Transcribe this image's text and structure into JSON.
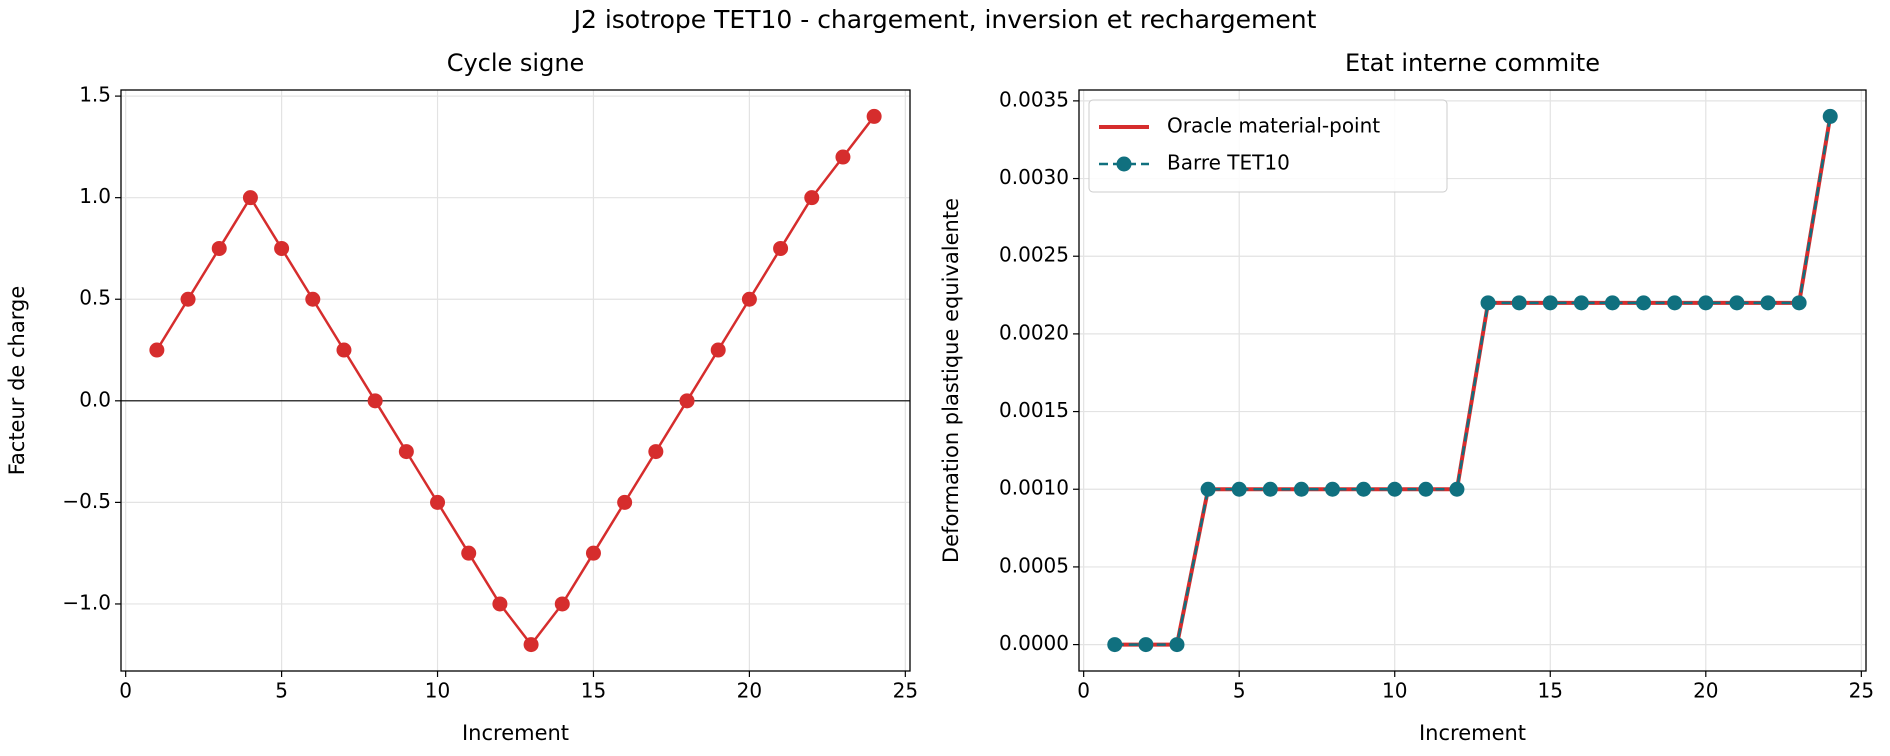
{
  "title": "J2 isotrope TET10 - chargement, inversion et rechargement",
  "chart_data": [
    {
      "type": "line",
      "title": "Cycle signe",
      "xlabel": "Increment",
      "ylabel": "Facteur de charge",
      "x": [
        1,
        2,
        3,
        4,
        5,
        6,
        7,
        8,
        9,
        10,
        11,
        12,
        13,
        14,
        15,
        16,
        17,
        18,
        19,
        20,
        21,
        22,
        23,
        24
      ],
      "series": [
        {
          "color": "#d62d2d",
          "linestyle": "solid",
          "linewidth": 2.5,
          "marker": true,
          "values": [
            0.25,
            0.5,
            0.75,
            1.0,
            0.75,
            0.5,
            0.25,
            0.0,
            -0.25,
            -0.5,
            -0.75,
            -1.0,
            -1.2,
            -1.0,
            -0.75,
            -0.5,
            -0.25,
            0.0,
            0.25,
            0.5,
            0.75,
            1.0,
            1.2,
            1.4
          ]
        }
      ],
      "hline": 0,
      "xlim": [
        -0.15,
        25.15
      ],
      "ylim": [
        -1.33,
        1.53
      ],
      "xticks": [
        0,
        5,
        10,
        15,
        20,
        25
      ],
      "yticks": [
        {
          "value": -1.0,
          "label": "−1.0"
        },
        {
          "value": -0.5,
          "label": "−0.5"
        },
        {
          "value": 0,
          "label": "0.0"
        },
        {
          "value": 0.5,
          "label": "0.5"
        },
        {
          "value": 1,
          "label": "1.0"
        },
        {
          "value": 1.5,
          "label": "1.5"
        }
      ],
      "grid": true
    },
    {
      "type": "line",
      "title": "Etat interne commite",
      "xlabel": "Increment",
      "ylabel": "Deformation plastique equivalente",
      "x": [
        1,
        2,
        3,
        4,
        5,
        6,
        7,
        8,
        9,
        10,
        11,
        12,
        13,
        14,
        15,
        16,
        17,
        18,
        19,
        20,
        21,
        22,
        23,
        24
      ],
      "series": [
        {
          "name": "Oracle material-point",
          "color": "#d62d2d",
          "linestyle": "solid",
          "linewidth": 4,
          "marker": false,
          "values": [
            0,
            0,
            0,
            0.001,
            0.001,
            0.001,
            0.001,
            0.001,
            0.001,
            0.001,
            0.001,
            0.001,
            0.0022,
            0.0022,
            0.0022,
            0.0022,
            0.0022,
            0.0022,
            0.0022,
            0.0022,
            0.0022,
            0.0022,
            0.0022,
            0.0034
          ]
        },
        {
          "name": "Barre TET10",
          "color": "#10707f",
          "linestyle": "dashed",
          "linewidth": 2.5,
          "marker": true,
          "values": [
            0,
            0,
            0,
            0.001,
            0.001,
            0.001,
            0.001,
            0.001,
            0.001,
            0.001,
            0.001,
            0.001,
            0.0022,
            0.0022,
            0.0022,
            0.0022,
            0.0022,
            0.0022,
            0.0022,
            0.0022,
            0.0022,
            0.0022,
            0.0022,
            0.0034
          ]
        }
      ],
      "legend": "upper left",
      "xlim": [
        -0.15,
        25.15
      ],
      "ylim": [
        -0.00017,
        0.00357
      ],
      "xticks": [
        0,
        5,
        10,
        15,
        20,
        25
      ],
      "yticks": [
        {
          "value": 0,
          "label": "0.0000"
        },
        {
          "value": 0.0005,
          "label": "0.0005"
        },
        {
          "value": 0.001,
          "label": "0.0010"
        },
        {
          "value": 0.0015,
          "label": "0.0015"
        },
        {
          "value": 0.002,
          "label": "0.0020"
        },
        {
          "value": 0.0025,
          "label": "0.0025"
        },
        {
          "value": 0.003,
          "label": "0.0030"
        },
        {
          "value": 0.0035,
          "label": "0.0035"
        }
      ],
      "grid": true
    }
  ]
}
